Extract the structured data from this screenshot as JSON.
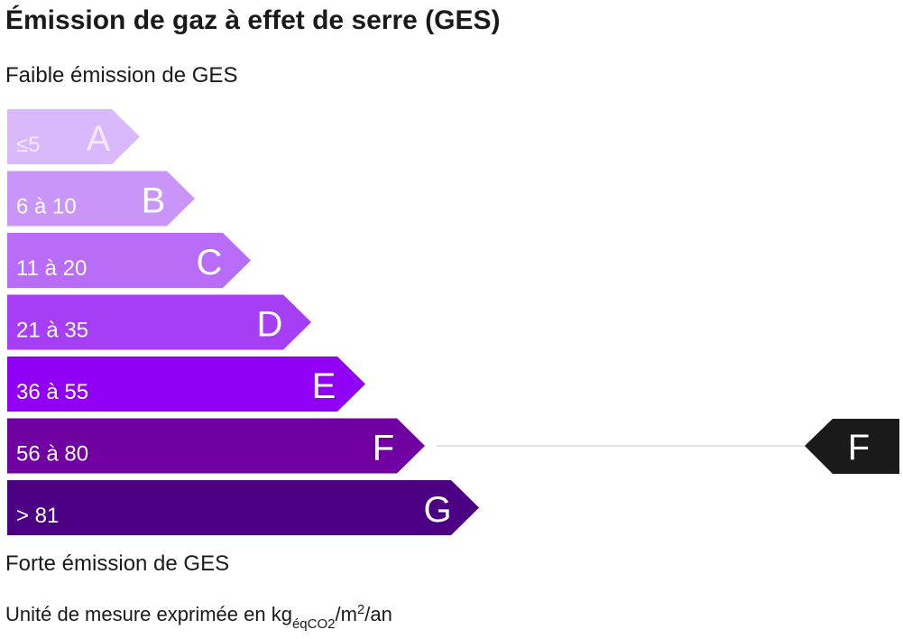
{
  "title": "Émission de gaz à effet de serre (GES)",
  "top_label": "Faible émission de GES",
  "bottom_label": "Forte émission de GES",
  "classes": [
    {
      "range": "≤5",
      "letter": "A",
      "color": "#dab9fb"
    },
    {
      "range": "6 à 10",
      "letter": "B",
      "color": "#ca95f8"
    },
    {
      "range": "11 à 20",
      "letter": "C",
      "color": "#b96cf7"
    },
    {
      "range": "21 à 35",
      "letter": "D",
      "color": "#a53ef5"
    },
    {
      "range": "36 à 55",
      "letter": "E",
      "color": "#9000f4"
    },
    {
      "range": "56 à 80",
      "letter": "F",
      "color": "#7100a3"
    },
    {
      "range": "> 81",
      "letter": "G",
      "color": "#4c0083"
    }
  ],
  "current": "F",
  "unit": {
    "text": "Unité de mesure exprimée en kg",
    "sub": "éqCO2",
    "mid": "/m",
    "sup": "2",
    "end": "/an"
  }
}
